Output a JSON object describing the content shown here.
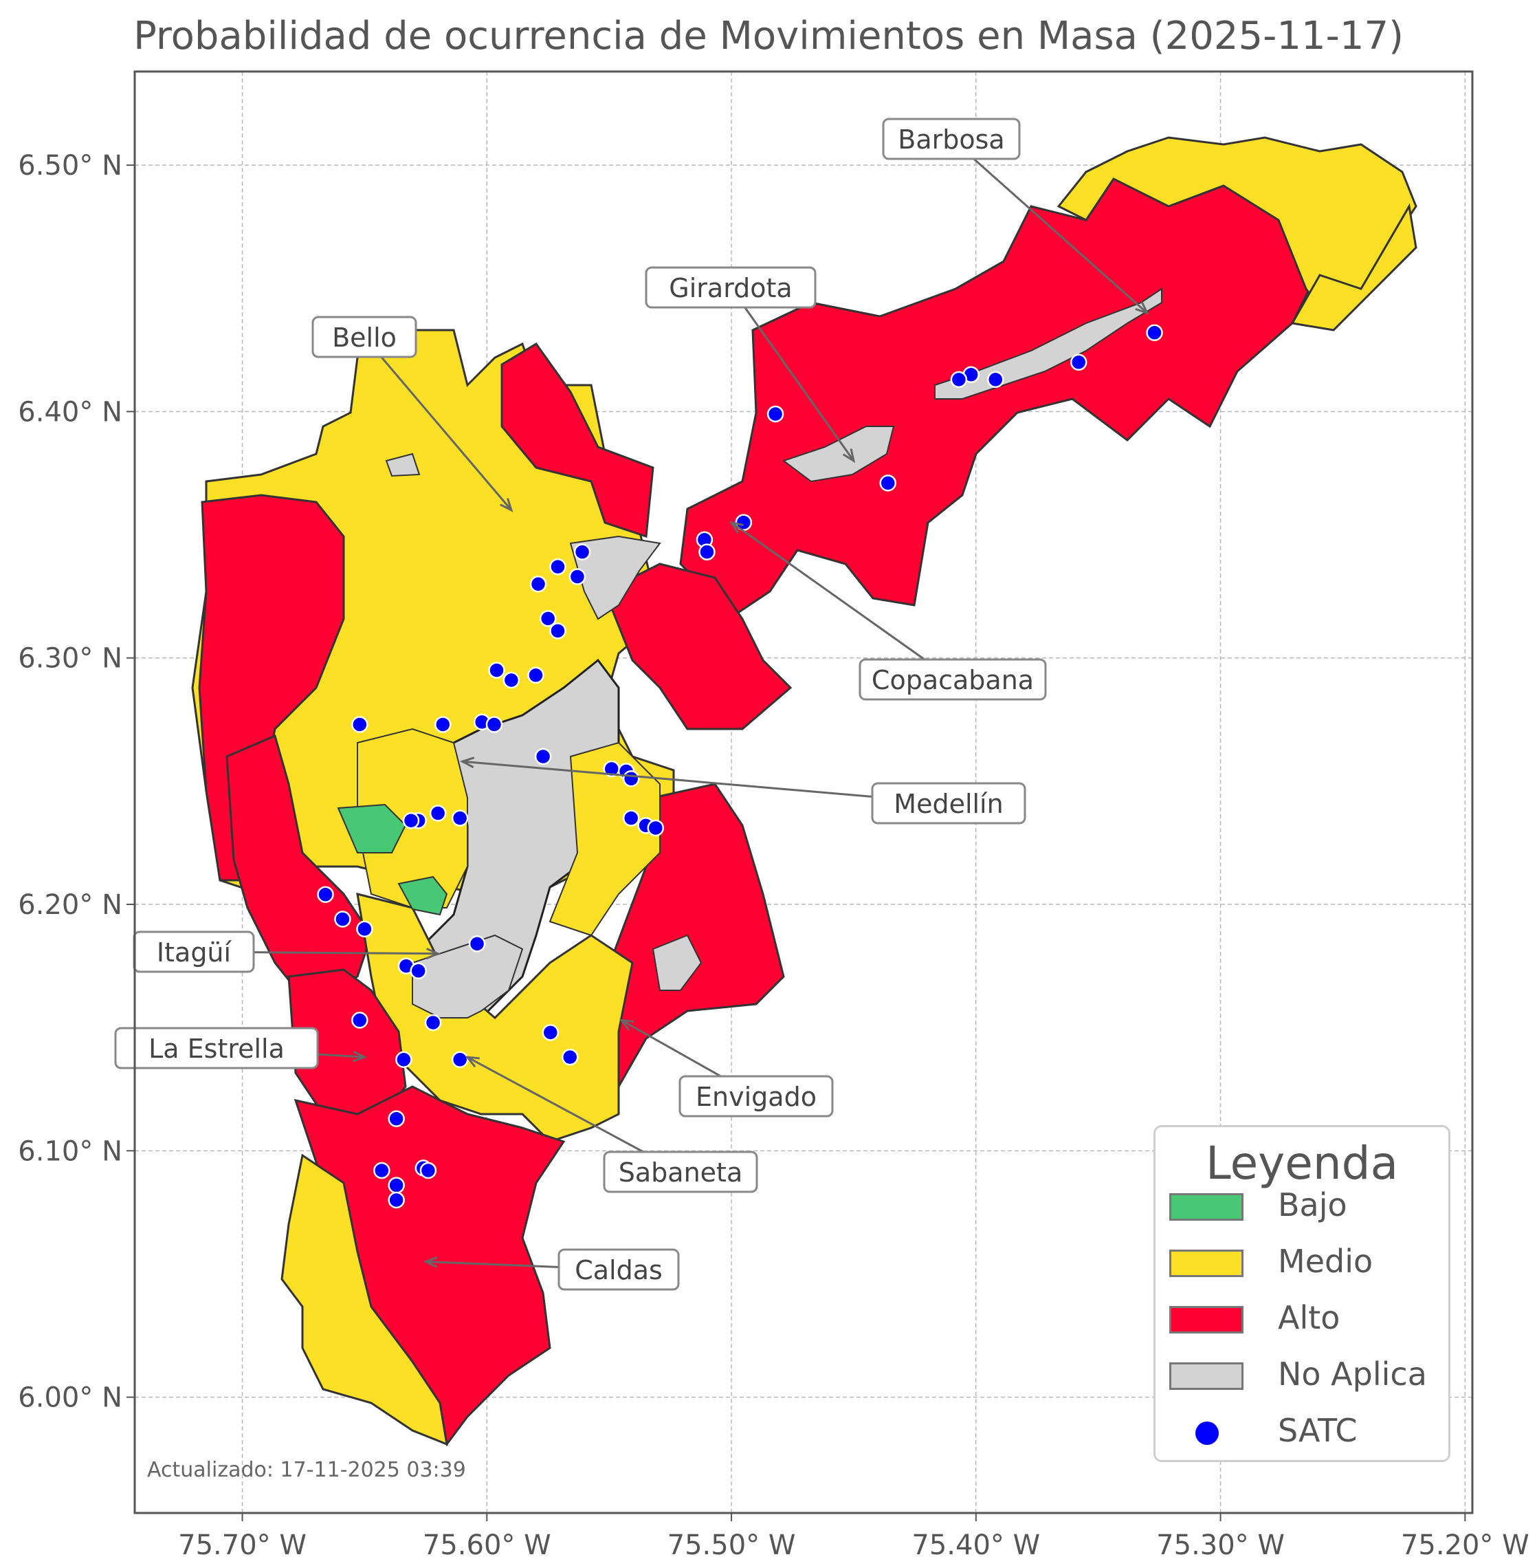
{
  "title": "Probabilidad de ocurrencia de Movimientos en Masa (2025-11-17)",
  "updated": "Actualizado: 17-11-2025 03:39",
  "colors": {
    "bajo": "#48c774",
    "medio": "#fbe026",
    "alto": "#ff0033",
    "no_aplica": "#d3d3d3",
    "satc": "#0000ff",
    "grid": "#b8b8b8",
    "frame": "#555555"
  },
  "axes": {
    "x_ticks": [
      {
        "value": -75.7,
        "label": "75.70° W"
      },
      {
        "value": -75.6,
        "label": "75.60° W"
      },
      {
        "value": -75.5,
        "label": "75.50° W"
      },
      {
        "value": -75.4,
        "label": "75.40° W"
      },
      {
        "value": -75.3,
        "label": "75.30° W"
      },
      {
        "value": -75.2,
        "label": "75.20° W"
      }
    ],
    "y_ticks": [
      {
        "value": 6.0,
        "label": "6.00° N"
      },
      {
        "value": 6.1,
        "label": "6.10° N"
      },
      {
        "value": 6.2,
        "label": "6.20° N"
      },
      {
        "value": 6.3,
        "label": "6.30° N"
      },
      {
        "value": 6.4,
        "label": "6.40° N"
      },
      {
        "value": 6.5,
        "label": "6.50° N"
      }
    ],
    "xlim": [
      -75.744,
      -75.197
    ],
    "ylim": [
      5.953,
      6.538
    ],
    "grid": true
  },
  "municipalities": [
    {
      "name": "Barbosa",
      "lon": -75.33,
      "lat": 6.44
    },
    {
      "name": "Girardota",
      "lon": -75.45,
      "lat": 6.38
    },
    {
      "name": "Bello",
      "lon": -75.59,
      "lat": 6.36
    },
    {
      "name": "Copacabana",
      "lon": -75.5,
      "lat": 6.355
    },
    {
      "name": "Medellín",
      "lon": -75.61,
      "lat": 6.258
    },
    {
      "name": "Itagüí",
      "lon": -75.62,
      "lat": 6.18
    },
    {
      "name": "La Estrella",
      "lon": -75.65,
      "lat": 6.138
    },
    {
      "name": "Sabaneta",
      "lon": -75.608,
      "lat": 6.138
    },
    {
      "name": "Envigado",
      "lon": -75.545,
      "lat": 6.153
    },
    {
      "name": "Caldas",
      "lon": -75.625,
      "lat": 6.055
    }
  ],
  "satc_points": [
    [
      -75.327,
      6.432
    ],
    [
      -75.358,
      6.42
    ],
    [
      -75.392,
      6.413
    ],
    [
      -75.402,
      6.415
    ],
    [
      -75.407,
      6.413
    ],
    [
      -75.482,
      6.399
    ],
    [
      -75.436,
      6.371
    ],
    [
      -75.495,
      6.355
    ],
    [
      -75.511,
      6.348
    ],
    [
      -75.51,
      6.343
    ],
    [
      -75.561,
      6.343
    ],
    [
      -75.571,
      6.337
    ],
    [
      -75.563,
      6.333
    ],
    [
      -75.579,
      6.33
    ],
    [
      -75.575,
      6.316
    ],
    [
      -75.571,
      6.311
    ],
    [
      -75.596,
      6.295
    ],
    [
      -75.59,
      6.291
    ],
    [
      -75.58,
      6.293
    ],
    [
      -75.652,
      6.273
    ],
    [
      -75.618,
      6.273
    ],
    [
      -75.602,
      6.274
    ],
    [
      -75.597,
      6.273
    ],
    [
      -75.577,
      6.26
    ],
    [
      -75.549,
      6.255
    ],
    [
      -75.543,
      6.254
    ],
    [
      -75.541,
      6.251
    ],
    [
      -75.541,
      6.235
    ],
    [
      -75.535,
      6.232
    ],
    [
      -75.531,
      6.231
    ],
    [
      -75.62,
      6.237
    ],
    [
      -75.628,
      6.234
    ],
    [
      -75.631,
      6.234
    ],
    [
      -75.611,
      6.235
    ],
    [
      -75.666,
      6.204
    ],
    [
      -75.659,
      6.194
    ],
    [
      -75.65,
      6.19
    ],
    [
      -75.633,
      6.175
    ],
    [
      -75.628,
      6.173
    ],
    [
      -75.604,
      6.184
    ],
    [
      -75.652,
      6.153
    ],
    [
      -75.622,
      6.152
    ],
    [
      -75.574,
      6.148
    ],
    [
      -75.566,
      6.138
    ],
    [
      -75.634,
      6.137
    ],
    [
      -75.611,
      6.137
    ],
    [
      -75.637,
      6.113
    ],
    [
      -75.643,
      6.092
    ],
    [
      -75.626,
      6.093
    ],
    [
      -75.624,
      6.092
    ],
    [
      -75.637,
      6.086
    ],
    [
      -75.637,
      6.08
    ]
  ],
  "legend": {
    "title": "Leyenda",
    "items": [
      {
        "label": "Bajo",
        "kind": "patch",
        "color": "#48c774"
      },
      {
        "label": "Medio",
        "kind": "patch",
        "color": "#fbe026"
      },
      {
        "label": "Alto",
        "kind": "patch",
        "color": "#ff0033"
      },
      {
        "label": "No Aplica",
        "kind": "patch",
        "color": "#d3d3d3"
      },
      {
        "label": "SATC",
        "kind": "point",
        "color": "#0000ff"
      }
    ]
  }
}
